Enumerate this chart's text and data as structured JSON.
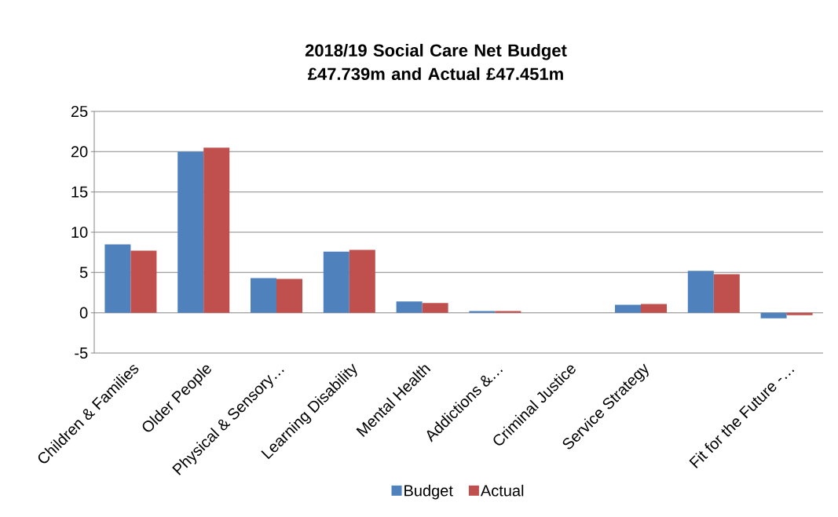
{
  "chart_data": {
    "type": "bar",
    "title": "2018/19 Social Care Net Budget £47.739m and Actual £47.451m",
    "categories": [
      "Children & Families",
      "Older People",
      "Physical & Sensory…",
      "Learning Disability",
      "Mental Health",
      "Addictions &…",
      "Criminal Justice",
      "Service Strategy",
      null,
      "Fit for the Future -…"
    ],
    "series": [
      {
        "name": "Budget",
        "color": "#4f81bd",
        "values": [
          8.5,
          20.0,
          4.3,
          7.6,
          1.4,
          0.2,
          0,
          1.0,
          5.2,
          -0.7
        ]
      },
      {
        "name": "Actual",
        "color": "#c0504d",
        "values": [
          7.7,
          20.5,
          4.2,
          7.8,
          1.2,
          0.2,
          0,
          1.1,
          4.8,
          -0.3
        ]
      }
    ],
    "ylim": [
      -5,
      25
    ],
    "yticks": [
      -5,
      0,
      5,
      10,
      15,
      20,
      25
    ],
    "grid": "y",
    "legend": "bottom"
  }
}
